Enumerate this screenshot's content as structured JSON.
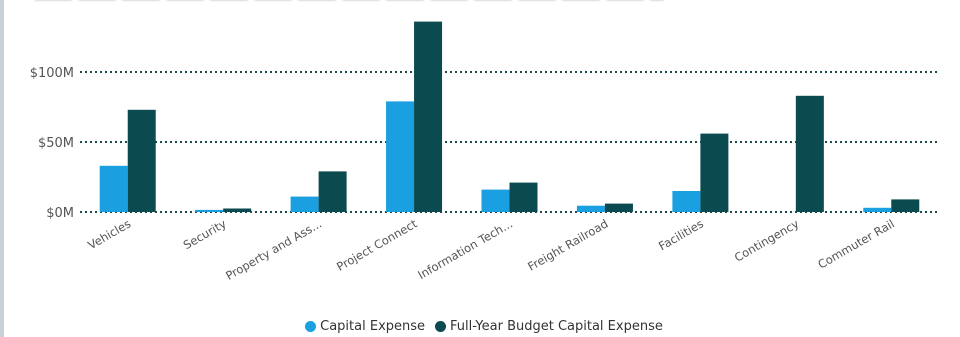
{
  "chart_data": {
    "type": "bar",
    "categories": [
      "Vehicles",
      "Security",
      "Property and Ass...",
      "Project Connect",
      "Information Tech...",
      "Freight Railroad",
      "Facilities",
      "Contingency",
      "Commuter Rail"
    ],
    "series": [
      {
        "name": "Capital Expense",
        "color": "#1aa0e0",
        "values": [
          33,
          1.5,
          11,
          79,
          16,
          4.5,
          15,
          0,
          3
        ]
      },
      {
        "name": "Full-Year Budget Capital Expense",
        "color": "#0b4a4e",
        "values": [
          73,
          2.5,
          29,
          136,
          21,
          6,
          56,
          83,
          9
        ]
      }
    ],
    "y_ticks": [
      {
        "value": 0,
        "label": "$0M"
      },
      {
        "value": 50,
        "label": "$50M"
      },
      {
        "value": 100,
        "label": "$100M"
      }
    ],
    "ylim": [
      0,
      140
    ],
    "ylabel": "",
    "xlabel": "",
    "grid": true,
    "legend_position": "bottom-center"
  }
}
